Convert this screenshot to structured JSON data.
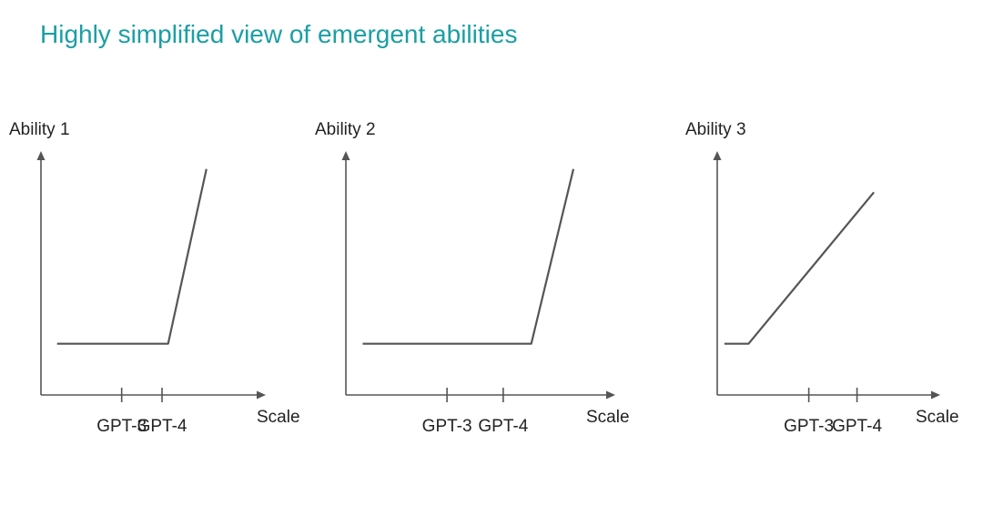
{
  "page": {
    "title": "Highly simplified view of emergent abilities",
    "title_color": "#1a9fa3",
    "axis_color": "#555555",
    "line_color": "#555555"
  },
  "chart_data": [
    {
      "type": "line",
      "ylabel": "Ability 1",
      "xlabel": "Scale",
      "tick_labels": [
        "GPT-3",
        "GPT-4"
      ],
      "tick_positions": [
        1,
        2
      ],
      "xlim": [
        -1,
        4.3
      ],
      "ylim": [
        0,
        10
      ],
      "series": [
        {
          "points": [
            [
              -0.6,
              2.2
            ],
            [
              2.15,
              2.2
            ],
            [
              3.1,
              9.7
            ]
          ]
        }
      ]
    },
    {
      "type": "line",
      "ylabel": "Ability 2",
      "xlabel": "Scale",
      "tick_labels": [
        "GPT-3",
        "GPT-4"
      ],
      "tick_positions": [
        1,
        2
      ],
      "xlim": [
        -0.8,
        3.8
      ],
      "ylim": [
        0,
        10
      ],
      "series": [
        {
          "points": [
            [
              -0.5,
              2.2
            ],
            [
              2.5,
              2.2
            ],
            [
              3.25,
              9.7
            ]
          ]
        }
      ]
    },
    {
      "type": "line",
      "ylabel": "Ability 3",
      "xlabel": "Scale",
      "tick_labels": [
        "GPT-3",
        "GPT-4"
      ],
      "tick_positions": [
        1,
        2
      ],
      "xlim": [
        -0.9,
        3.5
      ],
      "ylim": [
        0,
        10
      ],
      "series": [
        {
          "points": [
            [
              -0.75,
              2.2
            ],
            [
              -0.25,
              2.2
            ],
            [
              2.35,
              8.7
            ]
          ]
        }
      ]
    }
  ]
}
